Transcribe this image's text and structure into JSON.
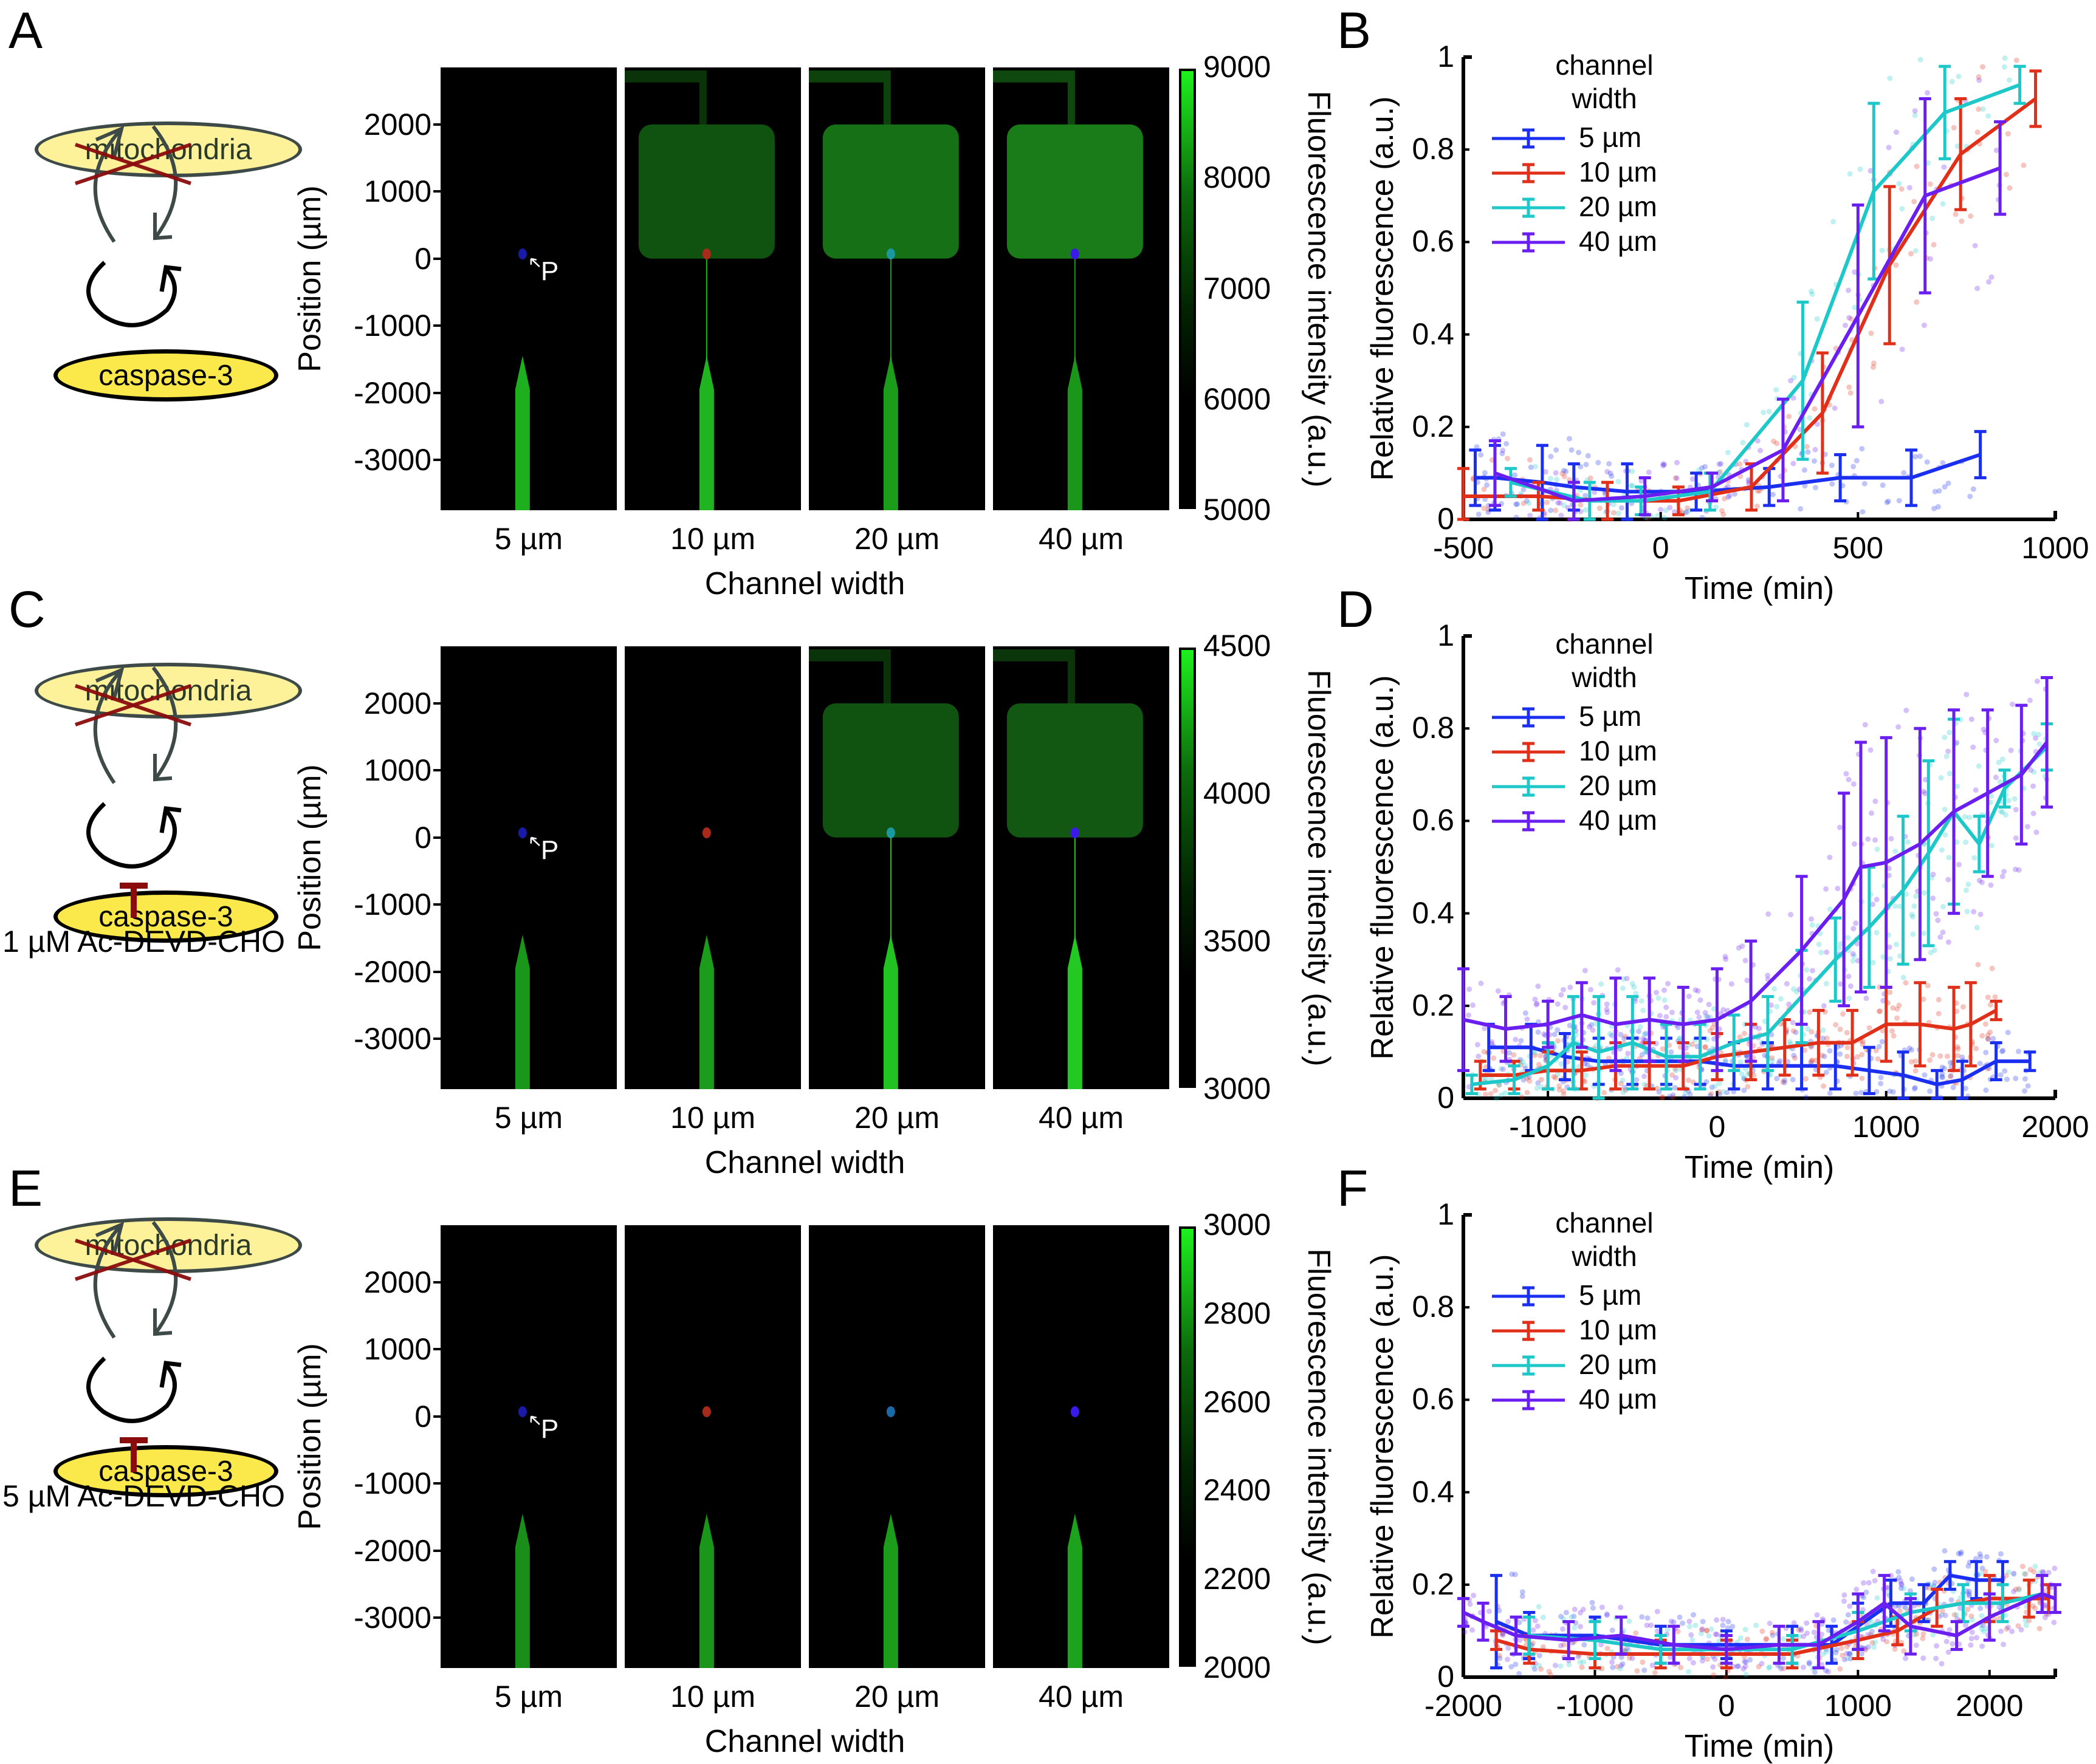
{
  "figure": {
    "rows": [
      {
        "diagram": {
          "letter": "A",
          "top_node": "mitochondria",
          "bottom_node": "caspase-3",
          "inhibitor": null
        },
        "images": {
          "letter_for_plot": "B",
          "y_axis_title": "Position (µm)",
          "y_ticks": [
            "2000",
            "1000",
            "0",
            "-1000",
            "-2000",
            "-3000"
          ],
          "x_axis_title": "Channel width",
          "panel_labels": [
            "5 µm",
            "10 µm",
            "20 µm",
            "40 µm"
          ],
          "marker_label": "P",
          "marker_colors": [
            "#1a1aa8",
            "#a82a1a",
            "#1a9aa0",
            "#3a1ae8"
          ],
          "fluorescent_reservoir": [
            false,
            true,
            true,
            true
          ],
          "reservoir_intensity": [
            0,
            0.35,
            0.6,
            0.7
          ],
          "channel_intensity": [
            0.75,
            0.8,
            0.6,
            0.55
          ],
          "colorbar": {
            "title": "Fluorescence intensity (a.u.)",
            "ticks": [
              "9000",
              "8000",
              "7000",
              "6000",
              "5000"
            ],
            "min": 5000,
            "max": 9000
          }
        }
      },
      {
        "diagram": {
          "letter": "C",
          "top_node": "mitochondria",
          "bottom_node": "caspase-3",
          "inhibitor": "1 µM Ac-DEVD-CHO"
        },
        "images": {
          "letter_for_plot": "D",
          "y_axis_title": "Position (µm)",
          "y_ticks": [
            "2000",
            "1000",
            "0",
            "-1000",
            "-2000",
            "-3000"
          ],
          "x_axis_title": "Channel width",
          "panel_labels": [
            "5 µm",
            "10 µm",
            "20 µm",
            "40 µm"
          ],
          "marker_label": "P",
          "marker_colors": [
            "#1a1aa8",
            "#a82a1a",
            "#1a9aa0",
            "#3a1ae8"
          ],
          "fluorescent_reservoir": [
            false,
            false,
            true,
            true
          ],
          "reservoir_intensity": [
            0,
            0,
            0.35,
            0.4
          ],
          "channel_intensity": [
            0.55,
            0.6,
            0.9,
            0.95
          ],
          "colorbar": {
            "title": "Fluorescence intensity (a.u.)",
            "ticks": [
              "4500",
              "4000",
              "3500",
              "3000"
            ],
            "min": 3000,
            "max": 4500
          }
        }
      },
      {
        "diagram": {
          "letter": "E",
          "top_node": "mitochondria",
          "bottom_node": "caspase-3",
          "inhibitor": "5 µM Ac-DEVD-CHO"
        },
        "images": {
          "letter_for_plot": "F",
          "y_axis_title": "Position (µm)",
          "y_ticks": [
            "2000",
            "1000",
            "0",
            "-1000",
            "-2000",
            "-3000"
          ],
          "x_axis_title": "Channel width",
          "panel_labels": [
            "5 µm",
            "10 µm",
            "20 µm",
            "40 µm"
          ],
          "marker_label": "P",
          "marker_colors": [
            "#1a1aa8",
            "#a82a1a",
            "#1a6aa8",
            "#3a1ae8"
          ],
          "fluorescent_reservoir": [
            false,
            false,
            false,
            false
          ],
          "reservoir_intensity": [
            0,
            0,
            0,
            0
          ],
          "channel_intensity": [
            0.5,
            0.55,
            0.6,
            0.65
          ],
          "colorbar": {
            "title": "Fluorescence intensity (a.u.)",
            "ticks": [
              "3000",
              "2800",
              "2600",
              "2400",
              "2200",
              "2000"
            ],
            "min": 2000,
            "max": 3000
          }
        }
      }
    ]
  },
  "chart_data": [
    {
      "panel": "B",
      "type": "line",
      "title": "",
      "xlabel": "Time (min)",
      "ylabel": "Relative fluorescence (a.u.)",
      "xlim": [
        -500,
        1000
      ],
      "ylim": [
        0,
        1
      ],
      "xticks": [
        "-500",
        "0",
        "500",
        "1000"
      ],
      "yticks": [
        "0",
        "0.2",
        "0.4",
        "0.6",
        "0.8",
        "1"
      ],
      "legend_title": "channel width",
      "legend_position": "top-left",
      "series": [
        {
          "name": "5 µm",
          "color": "#1a2ff0",
          "x": [
            -470,
            -420,
            -300,
            -220,
            -85,
            90,
            275,
            455,
            635,
            810
          ],
          "y": [
            0.09,
            0.09,
            0.08,
            0.07,
            0.06,
            0.06,
            0.07,
            0.09,
            0.09,
            0.14
          ],
          "err": [
            0.06,
            0.07,
            0.08,
            0.05,
            0.06,
            0.04,
            0.04,
            0.05,
            0.06,
            0.05
          ]
        },
        {
          "name": "10 µm",
          "color": "#e0301a",
          "x": [
            -500,
            -310,
            -135,
            45,
            230,
            410,
            580,
            760,
            950
          ],
          "y": [
            0.05,
            0.05,
            0.04,
            0.04,
            0.07,
            0.23,
            0.55,
            0.79,
            0.91
          ],
          "err": [
            0.06,
            0.03,
            0.04,
            0.03,
            0.05,
            0.13,
            0.17,
            0.12,
            0.06
          ]
        },
        {
          "name": "20 µm",
          "color": "#1ec8c8",
          "x": [
            -380,
            -180,
            -50,
            125,
            360,
            540,
            720,
            910
          ],
          "y": [
            0.08,
            0.04,
            0.04,
            0.06,
            0.3,
            0.71,
            0.88,
            0.94
          ],
          "err": [
            0.03,
            0.04,
            0.03,
            0.04,
            0.17,
            0.19,
            0.1,
            0.04
          ]
        },
        {
          "name": "40 µm",
          "color": "#6a1ef0",
          "x": [
            -420,
            -220,
            -40,
            130,
            310,
            500,
            670,
            860
          ],
          "y": [
            0.1,
            0.04,
            0.05,
            0.07,
            0.15,
            0.44,
            0.7,
            0.76
          ],
          "err": [
            0.07,
            0.04,
            0.04,
            0.03,
            0.11,
            0.24,
            0.21,
            0.1
          ]
        }
      ]
    },
    {
      "panel": "D",
      "type": "line",
      "title": "",
      "xlabel": "Time (min)",
      "ylabel": "Relative fluorescence (a.u.)",
      "xlim": [
        -1500,
        2000
      ],
      "ylim": [
        0,
        1
      ],
      "xticks": [
        "-1000",
        "0",
        "1000",
        "2000"
      ],
      "yticks": [
        "0",
        "0.2",
        "0.4",
        "0.6",
        "0.8",
        "1"
      ],
      "legend_title": "channel width",
      "legend_position": "top-left",
      "series": [
        {
          "name": "5 µm",
          "color": "#1a2ff0",
          "x": [
            -1350,
            -1100,
            -900,
            -700,
            -500,
            -300,
            -100,
            100,
            300,
            500,
            700,
            900,
            1100,
            1300,
            1450,
            1650,
            1850
          ],
          "y": [
            0.11,
            0.11,
            0.09,
            0.08,
            0.08,
            0.08,
            0.08,
            0.07,
            0.07,
            0.07,
            0.07,
            0.06,
            0.05,
            0.03,
            0.04,
            0.08,
            0.08
          ],
          "err": [
            0.05,
            0.05,
            0.05,
            0.05,
            0.05,
            0.05,
            0.05,
            0.05,
            0.05,
            0.05,
            0.05,
            0.05,
            0.05,
            0.03,
            0.04,
            0.04,
            0.02
          ]
        },
        {
          "name": "10 µm",
          "color": "#e0301a",
          "x": [
            -1400,
            -1200,
            -1000,
            -800,
            -600,
            -400,
            -200,
            0,
            200,
            400,
            600,
            800,
            1000,
            1200,
            1400,
            1500,
            1650
          ],
          "y": [
            0.05,
            0.05,
            0.06,
            0.06,
            0.07,
            0.07,
            0.07,
            0.09,
            0.1,
            0.11,
            0.12,
            0.12,
            0.16,
            0.16,
            0.15,
            0.16,
            0.19
          ],
          "err": [
            0.03,
            0.03,
            0.04,
            0.04,
            0.05,
            0.05,
            0.05,
            0.05,
            0.06,
            0.06,
            0.07,
            0.07,
            0.08,
            0.09,
            0.09,
            0.09,
            0.02
          ]
        },
        {
          "name": "20 µm",
          "color": "#1ec8c8",
          "x": [
            -1450,
            -1200,
            -1000,
            -850,
            -700,
            -500,
            -300,
            -100,
            100,
            300,
            500,
            700,
            900,
            1100,
            1250,
            1400,
            1550,
            1700,
            1950
          ],
          "y": [
            0.03,
            0.04,
            0.07,
            0.12,
            0.1,
            0.12,
            0.09,
            0.09,
            0.12,
            0.14,
            0.22,
            0.3,
            0.37,
            0.45,
            0.53,
            0.62,
            0.55,
            0.67,
            0.76
          ],
          "err": [
            0.02,
            0.03,
            0.05,
            0.1,
            0.12,
            0.1,
            0.07,
            0.07,
            0.06,
            0.08,
            0.1,
            0.09,
            0.13,
            0.16,
            0.2,
            0.2,
            0.06,
            0.04,
            0.05
          ]
        },
        {
          "name": "40 µm",
          "color": "#6a1ef0",
          "x": [
            -1500,
            -1250,
            -1000,
            -800,
            -600,
            -400,
            -200,
            0,
            200,
            500,
            750,
            850,
            1000,
            1200,
            1400,
            1600,
            1800,
            1950
          ],
          "y": [
            0.17,
            0.15,
            0.16,
            0.18,
            0.16,
            0.17,
            0.16,
            0.17,
            0.21,
            0.32,
            0.43,
            0.5,
            0.51,
            0.55,
            0.62,
            0.66,
            0.7,
            0.77
          ],
          "err": [
            0.11,
            0.07,
            0.05,
            0.07,
            0.1,
            0.09,
            0.08,
            0.11,
            0.13,
            0.16,
            0.23,
            0.27,
            0.27,
            0.25,
            0.22,
            0.18,
            0.15,
            0.14
          ]
        }
      ]
    },
    {
      "panel": "F",
      "type": "line",
      "title": "",
      "xlabel": "Time (min)",
      "ylabel": "Relative fluorescence (a.u.)",
      "xlim": [
        -2000,
        2500
      ],
      "ylim": [
        0,
        1
      ],
      "xticks": [
        "-2000",
        "-1000",
        "0",
        "1000",
        "2000"
      ],
      "yticks": [
        "0",
        "0.2",
        "0.4",
        "0.6",
        "0.8",
        "1"
      ],
      "legend_title": "channel width",
      "legend_position": "top-left",
      "series": [
        {
          "name": "5 µm",
          "color": "#1a2ff0",
          "x": [
            -1750,
            -1500,
            -1000,
            -500,
            0,
            500,
            800,
            1000,
            1250,
            1500,
            1700,
            1900,
            2100
          ],
          "y": [
            0.12,
            0.09,
            0.09,
            0.07,
            0.07,
            0.07,
            0.07,
            0.11,
            0.16,
            0.16,
            0.22,
            0.21,
            0.21
          ],
          "err": [
            0.1,
            0.05,
            0.04,
            0.04,
            0.03,
            0.04,
            0.04,
            0.05,
            0.05,
            0.04,
            0.03,
            0.04,
            0.04
          ]
        },
        {
          "name": "10 µm",
          "color": "#e0301a",
          "x": [
            -1750,
            -1500,
            -1000,
            -500,
            0,
            500,
            1000,
            1300,
            1600,
            2000,
            2300,
            2450
          ],
          "y": [
            0.08,
            0.06,
            0.05,
            0.05,
            0.05,
            0.05,
            0.08,
            0.1,
            0.15,
            0.17,
            0.17,
            0.17
          ],
          "err": [
            0.02,
            0.03,
            0.03,
            0.03,
            0.03,
            0.03,
            0.04,
            0.03,
            0.04,
            0.05,
            0.04,
            0.03
          ]
        },
        {
          "name": "20 µm",
          "color": "#1ec8c8",
          "x": [
            -1500,
            -1000,
            -500,
            0,
            500,
            1000,
            1400,
            1800,
            2100,
            2400
          ],
          "y": [
            0.09,
            0.08,
            0.06,
            0.06,
            0.06,
            0.1,
            0.14,
            0.16,
            0.16,
            0.18
          ],
          "err": [
            0.04,
            0.04,
            0.03,
            0.03,
            0.03,
            0.04,
            0.04,
            0.04,
            0.04,
            0.04
          ]
        },
        {
          "name": "40 µm",
          "color": "#6a1ef0",
          "x": [
            -2000,
            -1850,
            -1600,
            -1200,
            -800,
            -400,
            0,
            400,
            700,
            1000,
            1200,
            1400,
            1750,
            2000,
            2400,
            2500
          ],
          "y": [
            0.14,
            0.12,
            0.09,
            0.08,
            0.09,
            0.07,
            0.06,
            0.07,
            0.07,
            0.12,
            0.16,
            0.11,
            0.09,
            0.13,
            0.18,
            0.17
          ],
          "err": [
            0.03,
            0.04,
            0.04,
            0.04,
            0.04,
            0.04,
            0.03,
            0.04,
            0.05,
            0.06,
            0.06,
            0.06,
            0.03,
            0.05,
            0.04,
            0.03
          ]
        }
      ]
    }
  ]
}
